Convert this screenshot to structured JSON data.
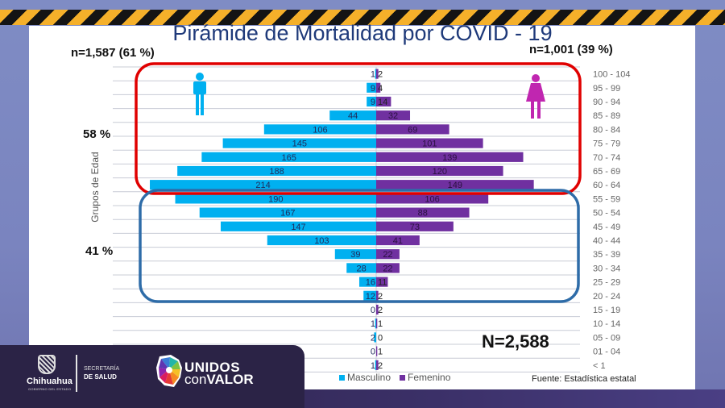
{
  "title": "Pirámide de Mortalidad por COVID - 19",
  "male_total_label": "n=1,587 (61 %)",
  "female_total_label": "n=1,001 (39 %)",
  "group_upper_pct": "58 %",
  "group_lower_pct": "41 %",
  "total_label": "N=2,588",
  "source": "Fuente: Estadística estatal",
  "colors": {
    "male": "#00b0f0",
    "female": "#7030a0",
    "upper_box": "#e00000",
    "lower_box": "#2e6ca8",
    "title": "#1f3a7a"
  },
  "icons": {
    "male": "male-person-icon",
    "female": "female-person-icon"
  },
  "footer": {
    "state_name": "Chihuahua",
    "state_subtitle": "GOBIERNO DEL ESTADO",
    "secretaria_line1": "SECRETARÍA",
    "secretaria_line2": "DE SALUD",
    "brand_line1": "UNIDOS",
    "brand_line2_light": "con",
    "brand_line2_bold": "VALOR"
  },
  "chart_data": {
    "type": "bar",
    "orientation": "horizontal-population-pyramid",
    "title": "Pirámide de Mortalidad por COVID - 19",
    "ylabel": "Grupos de Edad",
    "xlabel": "",
    "legend_position": "bottom-left",
    "grid": true,
    "categories": [
      "100 - 104",
      "95 - 99",
      "90 - 94",
      "85 - 89",
      "80 - 84",
      "75 - 79",
      "70 - 74",
      "65 - 69",
      "60 - 64",
      "55 - 59",
      "50 - 54",
      "45 - 49",
      "40 - 44",
      "35 - 39",
      "30 - 34",
      "25 - 29",
      "20 - 24",
      "15 - 19",
      "10 - 14",
      "05 - 09",
      "01 - 04",
      "< 1"
    ],
    "series": [
      {
        "name": "Masculino",
        "values": [
          1,
          9,
          9,
          44,
          106,
          145,
          165,
          188,
          214,
          190,
          167,
          147,
          103,
          39,
          28,
          16,
          12,
          0,
          1,
          2,
          0,
          1
        ]
      },
      {
        "name": "Femenino",
        "values": [
          2,
          4,
          14,
          32,
          69,
          101,
          139,
          120,
          149,
          106,
          88,
          73,
          41,
          22,
          22,
          11,
          2,
          2,
          1,
          0,
          1,
          2
        ]
      }
    ],
    "annotations": [
      {
        "text": "58 %",
        "group": "60 - 104"
      },
      {
        "text": "41 %",
        "group": "20 - 59"
      },
      {
        "text": "n=1,587 (61 %)",
        "series": "Masculino"
      },
      {
        "text": "n=1,001 (39 %)",
        "series": "Femenino"
      },
      {
        "text": "N=2,588"
      }
    ],
    "xlim": [
      -220,
      220
    ]
  }
}
